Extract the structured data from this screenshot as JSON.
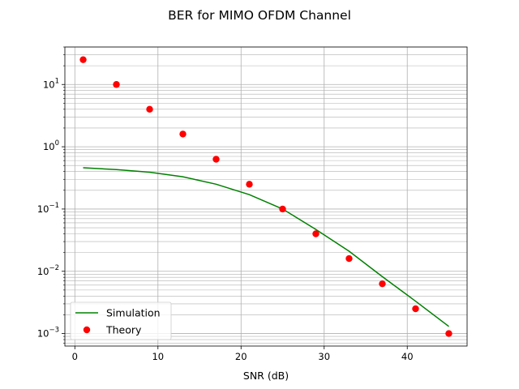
{
  "chart_data": {
    "type": "line",
    "title": "BER for MIMO OFDM Channel",
    "xlabel": "SNR (dB)",
    "ylabel": "",
    "yscale": "log",
    "grid": "both",
    "xlim": [
      -1.2,
      47.2
    ],
    "ylim": [
      0.00063,
      40
    ],
    "xticks": [
      0,
      10,
      20,
      30,
      40
    ],
    "yticks": [
      {
        "value": 0.001,
        "base": "10",
        "exp": "−3"
      },
      {
        "value": 0.01,
        "base": "10",
        "exp": "−2"
      },
      {
        "value": 0.1,
        "base": "10",
        "exp": "−1"
      },
      {
        "value": 1,
        "base": "10",
        "exp": "0"
      },
      {
        "value": 10,
        "base": "10",
        "exp": "1"
      }
    ],
    "legend_position": "lower-left",
    "series": [
      {
        "name": "Simulation",
        "style": "line",
        "color": "#008000",
        "x": [
          1,
          5,
          9,
          13,
          17,
          21,
          25,
          29,
          33,
          37,
          41,
          45
        ],
        "y": [
          0.46,
          0.43,
          0.39,
          0.33,
          0.25,
          0.17,
          0.1,
          0.047,
          0.021,
          0.0082,
          0.0033,
          0.0013
        ]
      },
      {
        "name": "Theory",
        "style": "marker",
        "color": "#ff0000",
        "x": [
          1,
          5,
          9,
          13,
          17,
          21,
          25,
          29,
          33,
          37,
          41,
          45
        ],
        "y": [
          25,
          10,
          4.0,
          1.6,
          0.63,
          0.25,
          0.1,
          0.04,
          0.016,
          0.0063,
          0.0025,
          0.001
        ]
      }
    ]
  }
}
